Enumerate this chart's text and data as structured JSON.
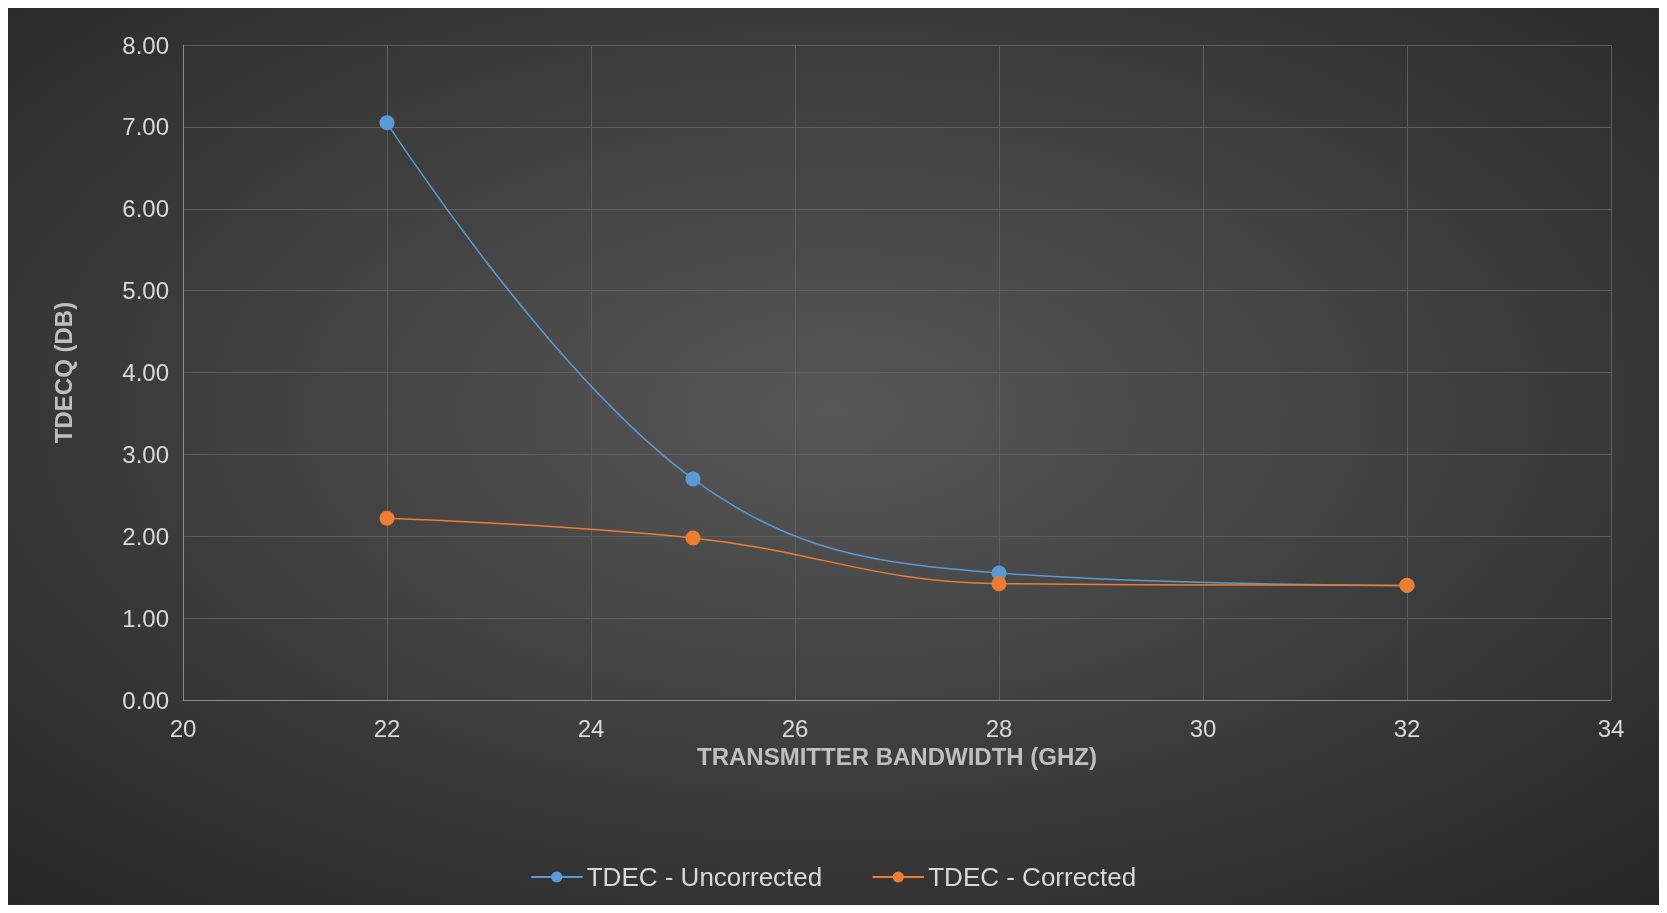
{
  "chart_data": {
    "type": "line",
    "xlabel": "TRANSMITTER BANDWIDTH (GHZ)",
    "ylabel": "TDECQ (DB)",
    "x": [
      22,
      25,
      28,
      32
    ],
    "series": [
      {
        "name": "TDEC - Uncorrected",
        "color": "#5b9bd5",
        "values": [
          7.05,
          2.7,
          1.55,
          1.4
        ]
      },
      {
        "name": "TDEC - Corrected",
        "color": "#ed7d31",
        "values": [
          2.22,
          1.98,
          1.42,
          1.4
        ]
      }
    ],
    "xlim": [
      20,
      34
    ],
    "xticks": [
      20,
      22,
      24,
      26,
      28,
      30,
      32,
      34
    ],
    "ylim": [
      0,
      8
    ],
    "yticks": [
      {
        "value": 0,
        "label": "0.00"
      },
      {
        "value": 1,
        "label": "1.00"
      },
      {
        "value": 2,
        "label": "2.00"
      },
      {
        "value": 3,
        "label": "3.00"
      },
      {
        "value": 4,
        "label": "4.00"
      },
      {
        "value": 5,
        "label": "5.00"
      },
      {
        "value": 6,
        "label": "6.00"
      },
      {
        "value": 7,
        "label": "7.00"
      },
      {
        "value": 8,
        "label": "8.00"
      }
    ],
    "grid": true,
    "legend": "bottom",
    "marker": "circle",
    "line_style": "solid"
  }
}
